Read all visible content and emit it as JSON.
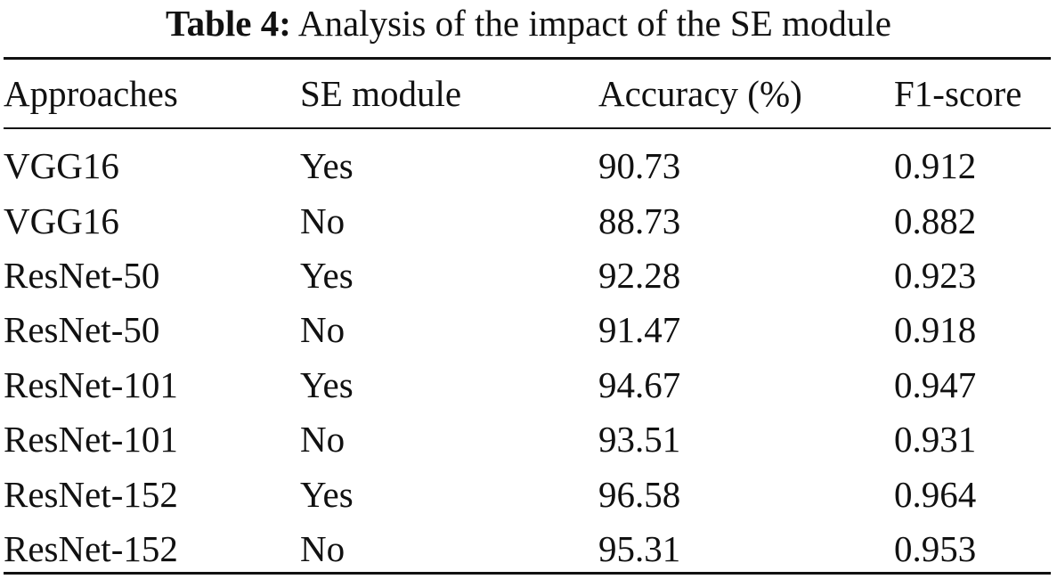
{
  "caption": {
    "label": "Table 4:",
    "text": "Analysis of the impact of the SE module"
  },
  "columns": [
    "Approaches",
    "SE module",
    "Accuracy (%)",
    "F1-score"
  ],
  "rows": [
    {
      "approach": "VGG16",
      "se": "Yes",
      "accuracy": "90.73",
      "f1": "0.912"
    },
    {
      "approach": "VGG16",
      "se": "No",
      "accuracy": "88.73",
      "f1": "0.882"
    },
    {
      "approach": "ResNet-50",
      "se": "Yes",
      "accuracy": "92.28",
      "f1": "0.923"
    },
    {
      "approach": "ResNet-50",
      "se": "No",
      "accuracy": "91.47",
      "f1": "0.918"
    },
    {
      "approach": "ResNet-101",
      "se": "Yes",
      "accuracy": "94.67",
      "f1": "0.947"
    },
    {
      "approach": "ResNet-101",
      "se": "No",
      "accuracy": "93.51",
      "f1": "0.931"
    },
    {
      "approach": "ResNet-152",
      "se": "Yes",
      "accuracy": "96.58",
      "f1": "0.964"
    },
    {
      "approach": "ResNet-152",
      "se": "No",
      "accuracy": "95.31",
      "f1": "0.953"
    }
  ]
}
